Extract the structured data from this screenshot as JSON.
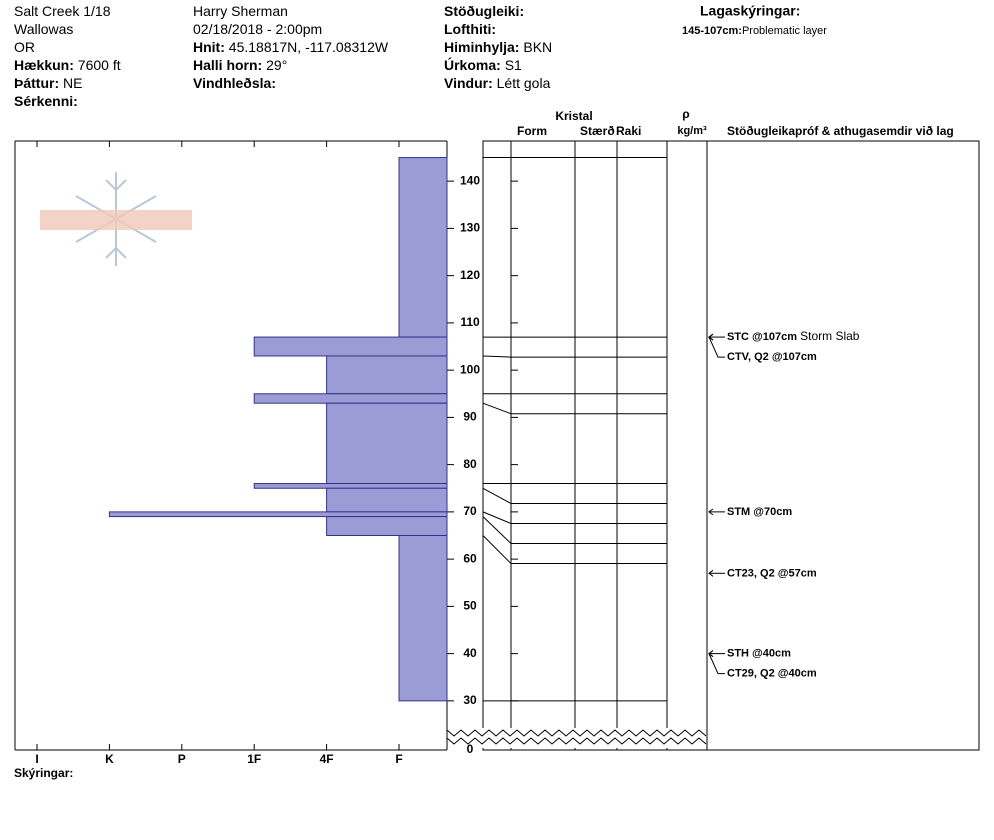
{
  "header": {
    "columns": [
      [
        {
          "value": "Salt Creek 1/18"
        },
        {
          "value": "Wallowas"
        },
        {
          "value": "OR"
        },
        {
          "label": "Hækkun:",
          "value": "7600 ft"
        },
        {
          "label": "Þáttur:",
          "value": "NE"
        },
        {
          "label": "Sérkenni:"
        }
      ],
      [
        {
          "value": "Harry Sherman"
        },
        {
          "value": "02/18/2018 - 2:00pm"
        },
        {
          "label": "Hnit:",
          "value": "45.18817N, -117.08312W"
        },
        {
          "label": "Halli horn:",
          "value": "29°"
        },
        {
          "label": "Vindhleðsla:"
        }
      ],
      [
        {
          "label": "Stöðugleiki:"
        },
        {
          "label": "Lofthiti:"
        },
        {
          "label": "Himinhylja:",
          "value": "BKN"
        },
        {
          "label": "Úrkoma:",
          "value": "S1"
        },
        {
          "label": "Vindur:",
          "value": "Létt gola"
        }
      ]
    ],
    "legend": {
      "title": "Lagaskýringar:",
      "items": [
        {
          "label": "145-107cm:",
          "value": "Problematic layer"
        }
      ]
    },
    "logo": "SNOW PILOT",
    "footer": "Skýringar:"
  },
  "chart_data": {
    "type": "snow-profile",
    "categories": [
      "I",
      "K",
      "P",
      "1F",
      "4F",
      "F"
    ],
    "ylim": [
      19.6,
      148.5
    ],
    "yticks": [
      0,
      30,
      40,
      50,
      60,
      70,
      80,
      90,
      100,
      110,
      120,
      130,
      140
    ],
    "axis_break": true,
    "color": "#9b9bd6",
    "layers": [
      {
        "top": 145,
        "bottom": 107,
        "hardness": "F"
      },
      {
        "top": 107,
        "bottom": 103,
        "hardness": "1F"
      },
      {
        "top": 103,
        "bottom": 95,
        "hardness": "4F"
      },
      {
        "top": 95,
        "bottom": 93,
        "hardness": "1F"
      },
      {
        "top": 93,
        "bottom": 76,
        "hardness": "4F"
      },
      {
        "top": 76,
        "bottom": 75,
        "hardness": "1F"
      },
      {
        "top": 75,
        "bottom": 70,
        "hardness": "4F"
      },
      {
        "top": 70,
        "bottom": 69,
        "hardness": "K"
      },
      {
        "top": 69,
        "bottom": 65,
        "hardness": "4F"
      },
      {
        "top": 65,
        "bottom": 30,
        "hardness": "F"
      }
    ],
    "columns": {
      "crystal": "Kristal",
      "form": "Form",
      "size": "Stærð",
      "moisture": "Raki",
      "density": "ρ",
      "density_unit": "kg/m³",
      "tests": "Stöðugleikapróf & athugasemdir við lag"
    },
    "tests": [
      {
        "label": "STC @107cm",
        "comment": "Storm Slab",
        "depth": 107
      },
      {
        "label": "CTV, Q2 @107cm",
        "depth": 107
      },
      {
        "label": "STM @70cm",
        "depth": 70
      },
      {
        "label": "CT23, Q2 @57cm",
        "depth": 57
      },
      {
        "label": "STH @40cm",
        "depth": 40
      },
      {
        "label": "CT29, Q2 @40cm",
        "depth": 40
      }
    ]
  }
}
